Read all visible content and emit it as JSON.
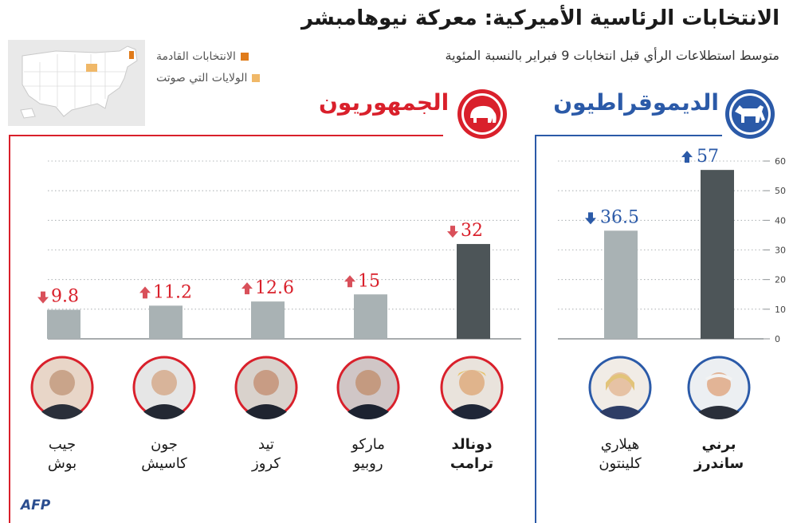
{
  "title": "الانتخابات الرئاسية الأميركية: معركة نيوهامبشر",
  "subtitle": "متوسط استطلاعات الرأي قبل انتخابات 9 فبراير بالنسبة المئوية",
  "legend": {
    "upcoming": "الانتخابات القادمة",
    "voted": "الولايات التي صوتت"
  },
  "parties": {
    "republicans": "الجمهوريون",
    "democrats": "الديموقراطيون"
  },
  "colors": {
    "republican_red": "#d9202b",
    "democrat_blue": "#2b5aa8",
    "leader_bar": "#4d5558",
    "other_bar": "#a9b2b4",
    "up_arrow": "#d9505a",
    "down_arrow_rep": "#d9505a",
    "down_arrow_dem": "#2b5aa8",
    "legend_upcoming": "#e07b1a",
    "legend_voted": "#f0b868"
  },
  "chart_data": [
    {
      "type": "bar",
      "party": "الجمهوريون",
      "categories": [
        "جيب بوش",
        "جون كاسيش",
        "تيد كروز",
        "ماركو روبيو",
        "دونالد ترامب"
      ],
      "values": [
        9.8,
        11.2,
        12.6,
        15,
        32
      ],
      "value_labels": [
        "9.8",
        "11.2",
        "12.6",
        "15",
        "32"
      ],
      "trend": [
        "down",
        "up",
        "up",
        "up",
        "down"
      ],
      "leader": "دونالد ترامب",
      "ylim": [
        0,
        60
      ]
    },
    {
      "type": "bar",
      "party": "الديموقراطيون",
      "categories": [
        "هيلاري كلينتون",
        "برني ساندرز"
      ],
      "values": [
        36.5,
        57
      ],
      "value_labels": [
        "36.5",
        "57"
      ],
      "trend": [
        "down",
        "up"
      ],
      "leader": "برني ساندرز",
      "ylim": [
        0,
        60
      ],
      "yticks": [
        "0",
        "10",
        "20",
        "30",
        "40",
        "50",
        "60"
      ]
    }
  ],
  "candidates": {
    "bush": {
      "first": "جيب",
      "last": "بوش"
    },
    "kasich": {
      "first": "جون",
      "last": "كاسيش"
    },
    "cruz": {
      "first": "تيد",
      "last": "كروز"
    },
    "rubio": {
      "first": "ماركو",
      "last": "روبيو"
    },
    "trump": {
      "first": "دونالد",
      "last": "ترامب"
    },
    "clinton": {
      "first": "هيلاري",
      "last": "كلينتون"
    },
    "sanders": {
      "first": "برني",
      "last": "ساندرز"
    }
  },
  "credit": "AFP"
}
